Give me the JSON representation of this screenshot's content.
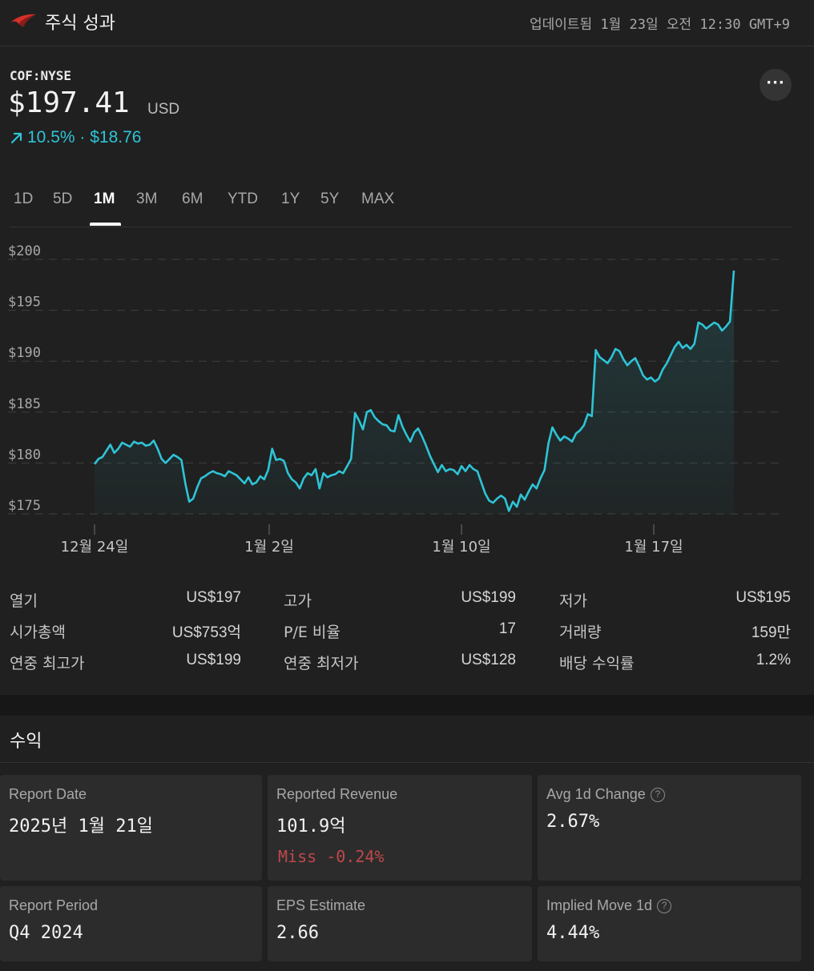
{
  "header": {
    "title": "주식 성과",
    "updated": "업데이트됨 1월 23일 오전 12:30 GMT+9"
  },
  "quote": {
    "ticker": "COF:NYSE",
    "price": "$197.41",
    "currency": "USD",
    "change": "10.5% · $18.76",
    "more_label": "···"
  },
  "tabs": [
    {
      "label": "1D"
    },
    {
      "label": "5D"
    },
    {
      "label": "1M"
    },
    {
      "label": "3M"
    },
    {
      "label": "6M"
    },
    {
      "label": "YTD"
    },
    {
      "label": "1Y"
    },
    {
      "label": "5Y"
    },
    {
      "label": "MAX"
    }
  ],
  "active_tab": "1M",
  "chart_data": {
    "type": "area",
    "y_ticks": [
      "$200",
      "$195",
      "$190",
      "$185",
      "$180",
      "$175"
    ],
    "ylim": [
      175,
      200
    ],
    "x_labels": [
      "12월 24일",
      "1월 2일",
      "1월 10일",
      "1월 17일"
    ],
    "line_color": "#2ec4d6",
    "values": [
      179.9,
      180.4,
      180.6,
      181.2,
      181.8,
      181.0,
      181.4,
      182.0,
      181.8,
      181.6,
      182.1,
      181.9,
      182.0,
      181.7,
      181.8,
      182.2,
      181.4,
      180.4,
      180.0,
      180.4,
      180.8,
      180.6,
      180.3,
      178.0,
      176.2,
      176.5,
      177.6,
      178.5,
      178.7,
      179.0,
      179.2,
      179.0,
      178.9,
      178.7,
      179.2,
      179.0,
      178.8,
      178.4,
      178.0,
      178.6,
      177.9,
      178.1,
      178.7,
      178.4,
      179.3,
      181.4,
      180.3,
      180.4,
      180.2,
      179.0,
      178.4,
      178.1,
      177.5,
      178.5,
      179.0,
      178.8,
      179.4,
      177.5,
      179.0,
      178.6,
      178.8,
      178.9,
      179.2,
      179.0,
      179.7,
      180.4,
      184.9,
      184.2,
      183.3,
      185.0,
      185.2,
      184.5,
      184.1,
      183.8,
      183.7,
      183.2,
      183.1,
      184.7,
      183.6,
      182.8,
      182.1,
      183.0,
      183.4,
      182.6,
      181.7,
      180.7,
      179.9,
      179.1,
      179.8,
      179.2,
      179.4,
      179.3,
      178.9,
      179.7,
      179.2,
      179.8,
      179.4,
      179.2,
      178.1,
      177.0,
      176.3,
      176.1,
      176.5,
      176.8,
      176.5,
      175.3,
      176.2,
      175.7,
      176.9,
      176.4,
      177.2,
      177.9,
      177.5,
      178.5,
      179.3,
      181.9,
      183.5,
      182.8,
      182.2,
      182.6,
      182.4,
      182.1,
      182.9,
      183.2,
      183.7,
      184.8,
      184.6,
      191.1,
      190.4,
      190.1,
      189.8,
      190.4,
      191.2,
      191.0,
      190.2,
      189.6,
      190.0,
      190.3,
      189.5,
      188.6,
      188.2,
      188.4,
      188.0,
      188.3,
      189.2,
      189.8,
      190.6,
      191.4,
      191.9,
      191.3,
      191.6,
      191.2,
      191.7,
      193.8,
      193.6,
      193.2,
      193.5,
      193.8,
      193.6,
      193.0,
      193.4,
      193.9,
      198.9
    ]
  },
  "stats": [
    {
      "label": "열기",
      "value": "US$197"
    },
    {
      "label": "고가",
      "value": "US$199"
    },
    {
      "label": "저가",
      "value": "US$195"
    },
    {
      "label": "시가총액",
      "value": "US$753억"
    },
    {
      "label": "P/E 비율",
      "value": "17"
    },
    {
      "label": "거래량",
      "value": "159만"
    },
    {
      "label": "연중 최고가",
      "value": "US$199"
    },
    {
      "label": "연중 최저가",
      "value": "US$128"
    },
    {
      "label": "배당 수익률",
      "value": "1.2%"
    }
  ],
  "earnings": {
    "title": "수익",
    "tiles": [
      {
        "label": "Report Date",
        "value": "2025년 1월 21일",
        "sub": "",
        "help": false
      },
      {
        "label": "Reported Revenue",
        "value": "101.9억",
        "sub": "Miss -0.24%",
        "help": false
      },
      {
        "label": "Avg 1d Change",
        "value": "2.67%",
        "sub": "",
        "help": true
      },
      {
        "label": "Report Period",
        "value": "Q4 2024",
        "sub": "",
        "help": false
      },
      {
        "label": "EPS Estimate",
        "value": "2.66",
        "sub": "",
        "help": false
      },
      {
        "label": "Implied Move 1d",
        "value": "4.44%",
        "sub": "",
        "help": true
      }
    ],
    "help_glyph": "?"
  }
}
